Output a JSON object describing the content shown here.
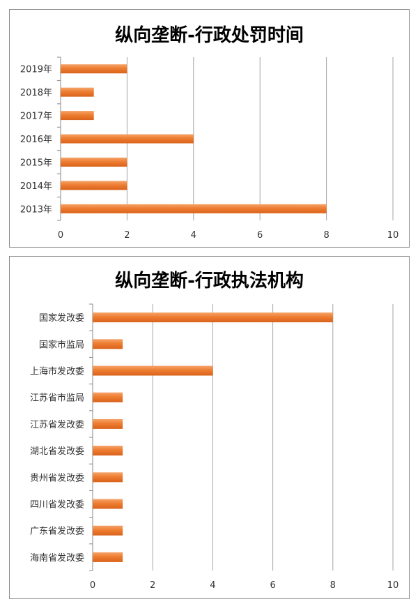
{
  "chart_data": [
    {
      "type": "bar",
      "orientation": "horizontal",
      "title": "纵向垄断-行政处罚时间",
      "categories": [
        "2019年",
        "2018年",
        "2017年",
        "2016年",
        "2015年",
        "2014年",
        "2013年"
      ],
      "values": [
        2,
        1,
        1,
        4,
        2,
        2,
        8
      ],
      "xlim": [
        0,
        10
      ],
      "xticks": [
        0,
        2,
        4,
        6,
        8,
        10
      ],
      "grid": true,
      "bar_color": "#ED7D31"
    },
    {
      "type": "bar",
      "orientation": "horizontal",
      "title": "纵向垄断-行政执法机构",
      "categories": [
        "国家发改委",
        "国家市监局",
        "上海市发改委",
        "江苏省市监局",
        "江苏省发改委",
        "湖北省发改委",
        "贵州省发改委",
        "四川省发改委",
        "广东省发改委",
        "海南省发改委"
      ],
      "values": [
        8,
        1,
        4,
        1,
        1,
        1,
        1,
        1,
        1,
        1
      ],
      "xlim": [
        0,
        10
      ],
      "xticks": [
        0,
        2,
        4,
        6,
        8,
        10
      ],
      "grid": true,
      "bar_color": "#ED7D31"
    }
  ]
}
